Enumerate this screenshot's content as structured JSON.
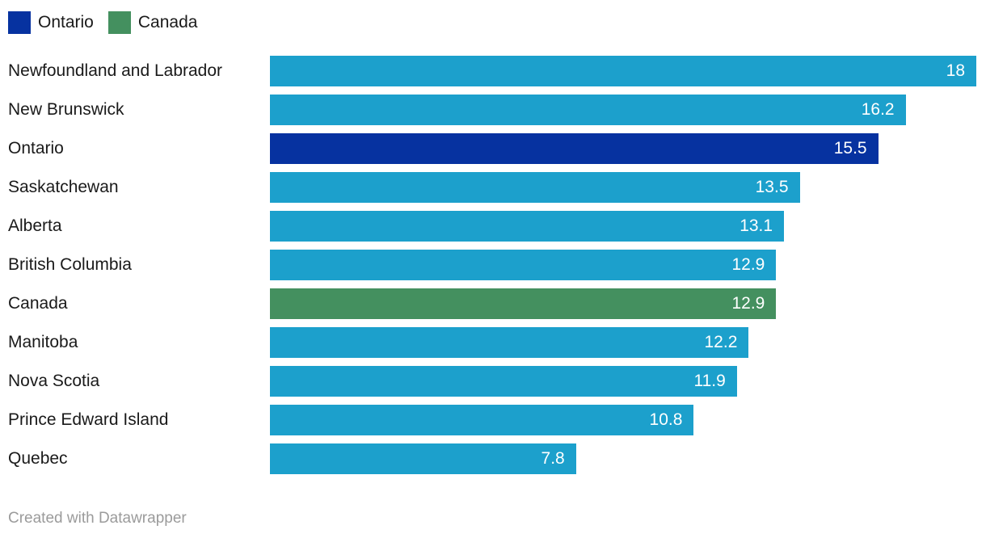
{
  "legend": {
    "items": [
      {
        "label": "Ontario",
        "series": "ontario"
      },
      {
        "label": "Canada",
        "series": "canada"
      }
    ]
  },
  "chart_data": {
    "type": "bar",
    "orientation": "horizontal",
    "title": "",
    "xlabel": "",
    "ylabel": "",
    "xlim": [
      0,
      18
    ],
    "grid": false,
    "legend_position": "top-left",
    "colors": {
      "default": "#1CA0CC",
      "ontario": "#0632A0",
      "canada": "#44905F"
    },
    "label_color": "#1A1A1A",
    "value_label_color": "#FFFFFF",
    "categories": [
      "Newfoundland and Labrador",
      "New Brunswick",
      "Ontario",
      "Saskatchewan",
      "Alberta",
      "British Columbia",
      "Canada",
      "Manitoba",
      "Nova Scotia",
      "Prince Edward Island",
      "Quebec"
    ],
    "values": [
      18,
      16.2,
      15.5,
      13.5,
      13.1,
      12.9,
      12.9,
      12.2,
      11.9,
      10.8,
      7.8
    ],
    "rows": [
      {
        "label": "Newfoundland and Labrador",
        "value": 18,
        "display": "18",
        "series": "default"
      },
      {
        "label": "New Brunswick",
        "value": 16.2,
        "display": "16.2",
        "series": "default"
      },
      {
        "label": "Ontario",
        "value": 15.5,
        "display": "15.5",
        "series": "ontario"
      },
      {
        "label": "Saskatchewan",
        "value": 13.5,
        "display": "13.5",
        "series": "default"
      },
      {
        "label": "Alberta",
        "value": 13.1,
        "display": "13.1",
        "series": "default"
      },
      {
        "label": "British Columbia",
        "value": 12.9,
        "display": "12.9",
        "series": "default"
      },
      {
        "label": "Canada",
        "value": 12.9,
        "display": "12.9",
        "series": "canada"
      },
      {
        "label": "Manitoba",
        "value": 12.2,
        "display": "12.2",
        "series": "default"
      },
      {
        "label": "Nova Scotia",
        "value": 11.9,
        "display": "11.9",
        "series": "default"
      },
      {
        "label": "Prince Edward Island",
        "value": 10.8,
        "display": "10.8",
        "series": "default"
      },
      {
        "label": "Quebec",
        "value": 7.8,
        "display": "7.8",
        "series": "default"
      }
    ],
    "max_value": 18
  },
  "footer": {
    "text": "Created with Datawrapper"
  }
}
